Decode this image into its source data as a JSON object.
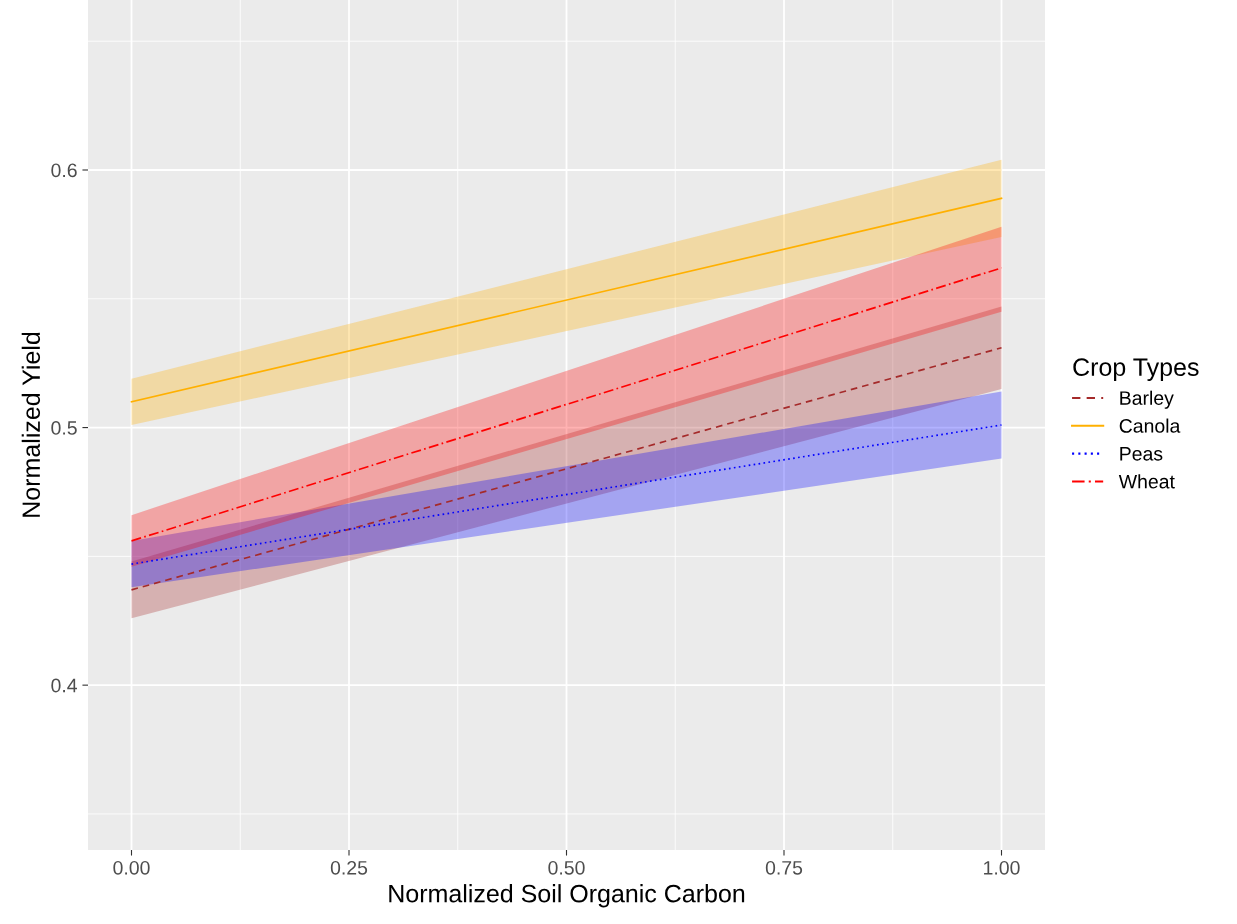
{
  "chart_data": {
    "type": "line",
    "xlabel": "Normalized Soil Organic Carbon",
    "ylabel": "Normalized Yield",
    "legend_title": "Crop Types",
    "x": [
      0,
      1
    ],
    "series": [
      {
        "name": "Barley",
        "color": "#a52a2a",
        "line_style": "dashed",
        "values": [
          0.437,
          0.531
        ],
        "lower": [
          0.426,
          0.515
        ],
        "upper": [
          0.448,
          0.547
        ]
      },
      {
        "name": "Canola",
        "color": "#ffb000",
        "line_style": "solid",
        "values": [
          0.51,
          0.589
        ],
        "lower": [
          0.501,
          0.574
        ],
        "upper": [
          0.519,
          0.604
        ]
      },
      {
        "name": "Peas",
        "color": "#0000ff",
        "line_style": "dotted",
        "values": [
          0.447,
          0.501
        ],
        "lower": [
          0.438,
          0.488
        ],
        "upper": [
          0.456,
          0.514
        ]
      },
      {
        "name": "Wheat",
        "color": "#ff0000",
        "line_style": "dashdot",
        "values": [
          0.456,
          0.562
        ],
        "lower": [
          0.446,
          0.545
        ],
        "upper": [
          0.466,
          0.578
        ]
      }
    ],
    "xlim": [
      -0.05,
      1.05
    ],
    "ylim": [
      0.336,
      0.666
    ],
    "xticks": [
      {
        "value": 0,
        "label": "0.00"
      },
      {
        "value": 0.25,
        "label": "0.25"
      },
      {
        "value": 0.5,
        "label": "0.50"
      },
      {
        "value": 0.75,
        "label": "0.75"
      },
      {
        "value": 1,
        "label": "1.00"
      }
    ],
    "yticks": [
      0.4,
      0.5,
      0.6
    ],
    "grid": true,
    "legend": "right",
    "marker": "none"
  }
}
